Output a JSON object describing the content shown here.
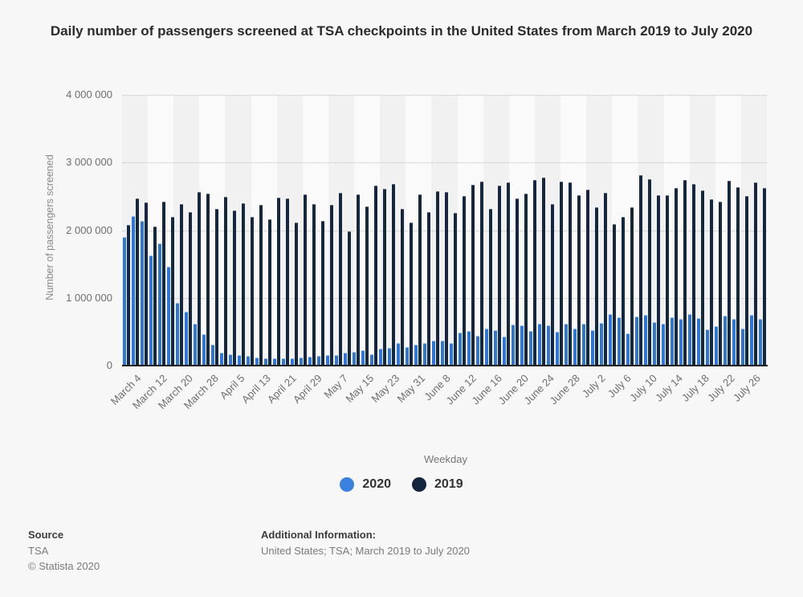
{
  "title": "Daily number of passengers screened at TSA checkpoints in the United States from March 2019 to July 2020",
  "y_axis": {
    "label": "Number of passengers screened",
    "ticks": [
      "4 000 000",
      "3 000 000",
      "2 000 000",
      "1 000 000",
      "0"
    ]
  },
  "legend": {
    "title": "Weekday",
    "items": [
      {
        "label": "2020",
        "color": "#3b82e0"
      },
      {
        "label": "2019",
        "color": "#13263d"
      }
    ]
  },
  "footer": {
    "source_heading": "Source",
    "source_name": "TSA",
    "copyright": "© Statista 2020",
    "additional_heading": "Additional Information:",
    "additional_text": "United States; TSA; March 2019 to July 2020"
  },
  "chart_data": {
    "type": "bar",
    "title": "Daily number of passengers screened at TSA checkpoints in the United States from March 2019 to July 2020",
    "xlabel": "",
    "ylabel": "Number of passengers screened",
    "ylim": [
      0,
      4000000
    ],
    "grid": "horizontal dotted at 1M steps",
    "legend_position": "bottom",
    "legend_title": "Weekday",
    "bars_per_tick_label": 3,
    "tick_labels": [
      "March 4",
      "March 12",
      "March 20",
      "March 28",
      "April 5",
      "April 13",
      "April 21",
      "April 29",
      "May 7",
      "May 15",
      "May 23",
      "May 31",
      "June 8",
      "June 12",
      "June 16",
      "June 20",
      "June 24",
      "June 28",
      "July 2",
      "July 6",
      "July 10",
      "July 14",
      "July 18",
      "July 22",
      "July 26"
    ],
    "series": [
      {
        "name": "2020",
        "color": "#2f76d9",
        "values": [
          1890000,
          2200000,
          2120000,
          1620000,
          1790000,
          1450000,
          920000,
          780000,
          600000,
          450000,
          300000,
          180000,
          160000,
          140000,
          125000,
          105000,
          95000,
          100000,
          90000,
          95000,
          105000,
          115000,
          130000,
          140000,
          140000,
          180000,
          190000,
          215000,
          160000,
          235000,
          250000,
          320000,
          260000,
          300000,
          320000,
          355000,
          360000,
          320000,
          470000,
          500000,
          430000,
          540000,
          515000,
          410000,
          595000,
          580000,
          500000,
          610000,
          585000,
          490000,
          605000,
          530000,
          600000,
          510000,
          620000,
          750000,
          700000,
          465000,
          710000,
          740000,
          630000,
          610000,
          700000,
          680000,
          750000,
          690000,
          520000,
          575000,
          720000,
          675000,
          540000,
          740000,
          675000
        ]
      },
      {
        "name": "2019",
        "color": "#15273e",
        "values": [
          2060000,
          2460000,
          2400000,
          2040000,
          2410000,
          2190000,
          2380000,
          2250000,
          2550000,
          2530000,
          2300000,
          2480000,
          2280000,
          2390000,
          2180000,
          2360000,
          2150000,
          2470000,
          2460000,
          2100000,
          2520000,
          2380000,
          2130000,
          2360000,
          2540000,
          1970000,
          2520000,
          2340000,
          2650000,
          2600000,
          2670000,
          2300000,
          2100000,
          2520000,
          2260000,
          2560000,
          2550000,
          2240000,
          2490000,
          2660000,
          2710000,
          2300000,
          2650000,
          2690000,
          2460000,
          2530000,
          2730000,
          2770000,
          2380000,
          2710000,
          2700000,
          2500000,
          2590000,
          2330000,
          2540000,
          2080000,
          2180000,
          2330000,
          2800000,
          2740000,
          2500000,
          2500000,
          2610000,
          2730000,
          2670000,
          2580000,
          2440000,
          2410000,
          2720000,
          2620000,
          2490000,
          2690000,
          2610000
        ]
      }
    ]
  }
}
